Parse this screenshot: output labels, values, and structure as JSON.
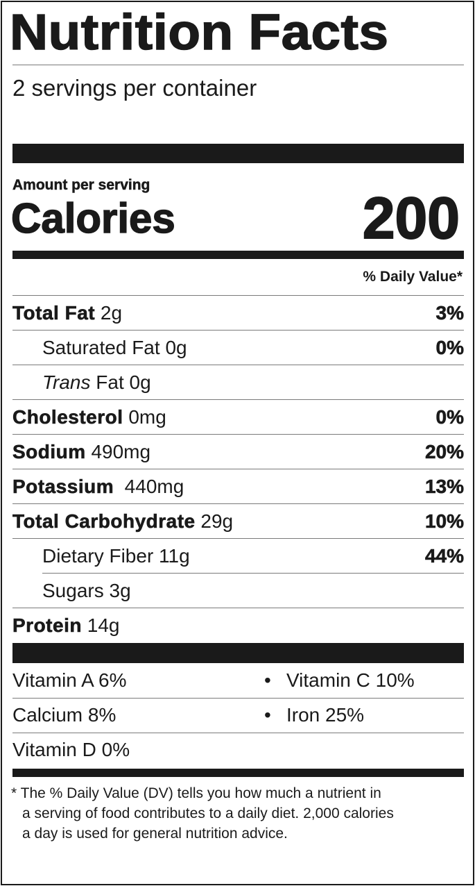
{
  "title": "Nutrition Facts",
  "servings": "2 servings per container",
  "amount_label": "Amount per serving",
  "calories_label": "Calories",
  "calories_value": "200",
  "dv_header": "% Daily Value*",
  "nutrients": [
    {
      "name": "Total Fat",
      "amount": "2g",
      "dv": "3%"
    },
    {
      "name": "Saturated Fat",
      "amount": "0g",
      "dv": "0%"
    },
    {
      "name": "Trans",
      "name_rest": "Fat",
      "amount": "0g",
      "dv": ""
    },
    {
      "name": "Cholesterol",
      "amount": "0mg",
      "dv": "0%"
    },
    {
      "name": "Sodium",
      "amount": "490mg",
      "dv": "20%"
    },
    {
      "name": "Potassium",
      "amount": "440mg",
      "dv": "13%"
    },
    {
      "name": "Total Carbohydrate",
      "amount": "29g",
      "dv": "10%"
    },
    {
      "name": "Dietary Fiber",
      "amount": "11g",
      "dv": "44%"
    },
    {
      "name": "Sugars",
      "amount": "3g",
      "dv": ""
    },
    {
      "name": "Protein",
      "amount": "14g",
      "dv": ""
    }
  ],
  "vitamins": [
    "Vitamin A 6%",
    "Vitamin C 10%",
    "Calcium 8%",
    "Iron 25%",
    "Vitamin D 0%"
  ],
  "bullet": "•",
  "footnote": [
    "* The % Daily Value (DV) tells you how much a nutrient in",
    "a serving of food contributes to a daily diet. 2,000 calories",
    "a day is used for general nutrition advice."
  ]
}
